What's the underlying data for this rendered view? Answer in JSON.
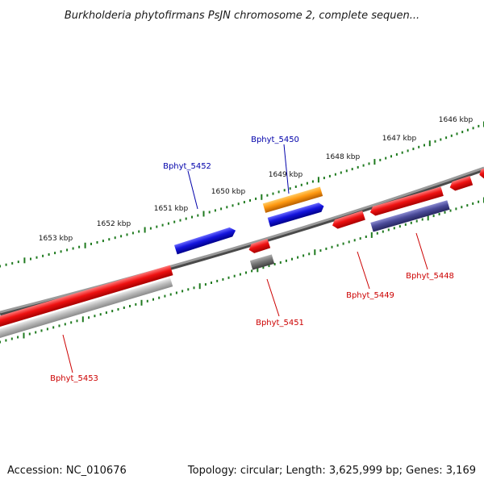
{
  "title": "Burkholderia phytofirmans PsJN chromosome 2, complete sequen...",
  "footer": {
    "accession": "Accession: NC_010676",
    "topology": "Topology: circular; Length: 3,625,999 bp; Genes: 3,169"
  },
  "colors": {
    "backbone": "#7a7a7a",
    "ruler": "#1f7a1f",
    "gene_red": "#ee1111",
    "gene_blue": "#1414dd",
    "gene_orange": "#ff9911",
    "gene_gray": "#777777",
    "gene_silver": "#bbbbbb",
    "gene_slate": "#4a4a99",
    "label_blue": "#0000aa",
    "label_red": "#cc0000"
  },
  "ruler_labels": [
    "1646 kbp",
    "1647 kbp",
    "1648 kbp",
    "1649 kbp",
    "1650 kbp",
    "1651 kbp",
    "1652 kbp",
    "1653 kbp"
  ],
  "gene_labels": [
    {
      "name": "Bphyt_5450",
      "color": "label_blue"
    },
    {
      "name": "Bphyt_5452",
      "color": "label_blue"
    },
    {
      "name": "Bphyt_5451",
      "color": "label_red"
    },
    {
      "name": "Bphyt_5449",
      "color": "label_red"
    },
    {
      "name": "Bphyt_5448",
      "color": "label_red"
    },
    {
      "name": "Bphyt_5453",
      "color": "label_red"
    }
  ]
}
